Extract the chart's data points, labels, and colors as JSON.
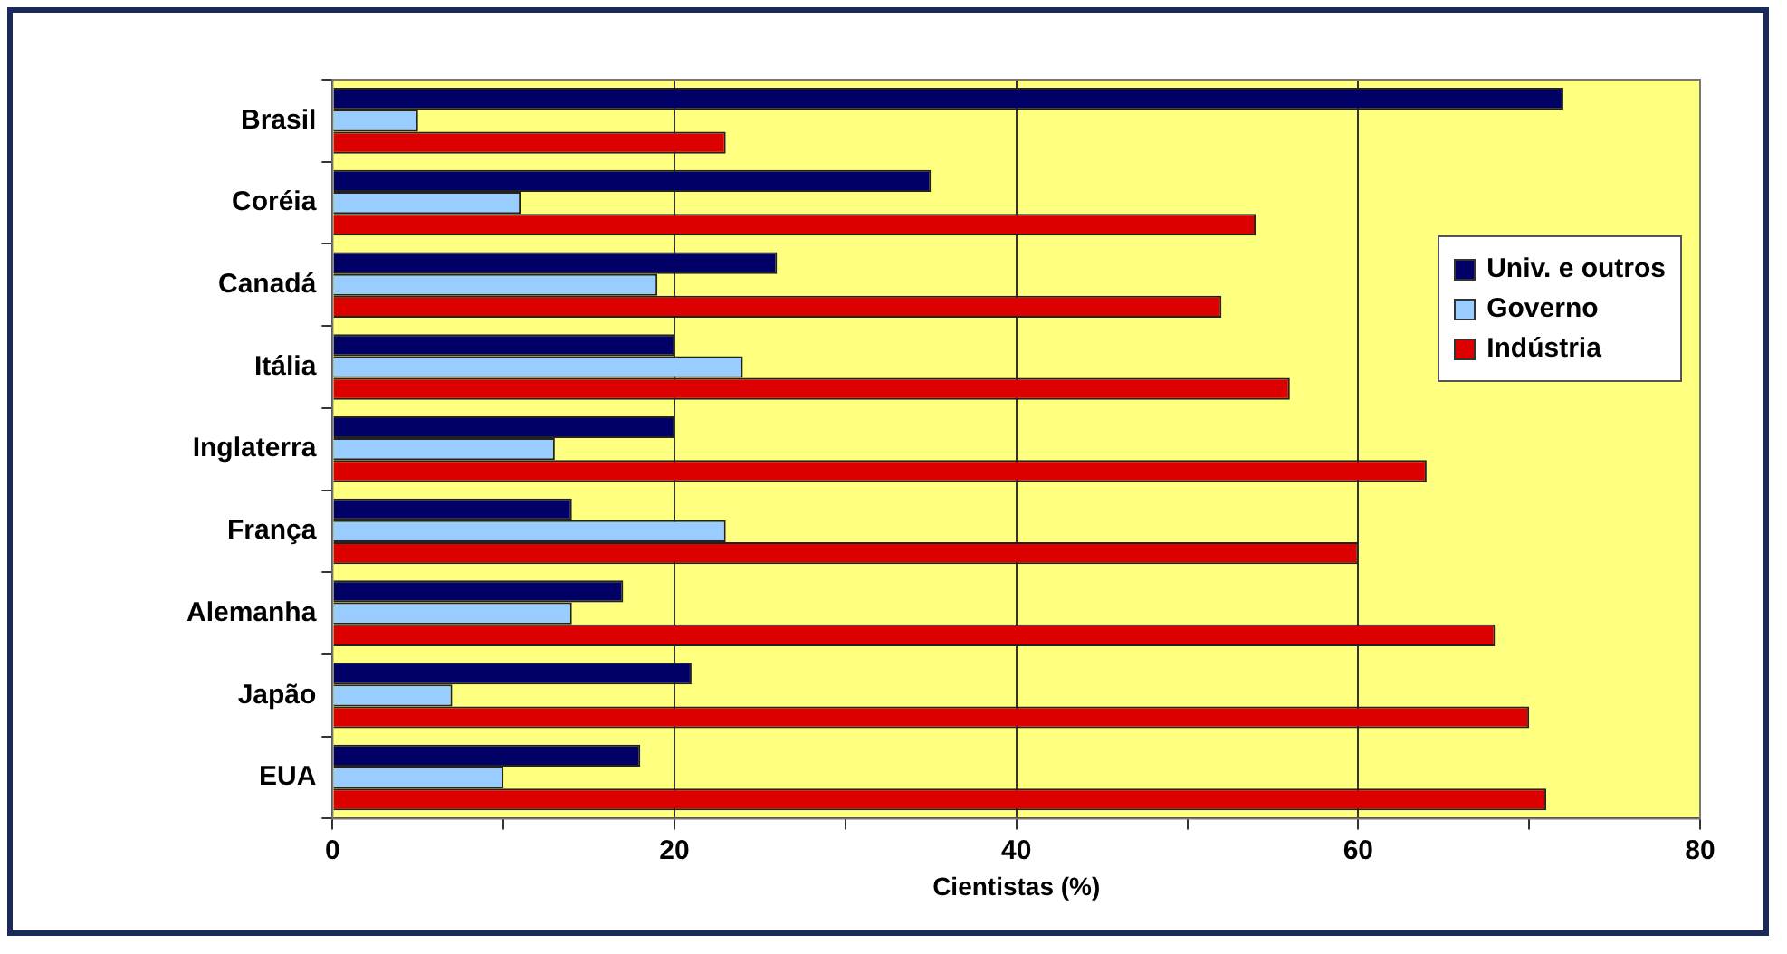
{
  "chart_data": {
    "type": "bar",
    "orientation": "horizontal",
    "xlabel": "Cientistas (%)",
    "categories": [
      "Brasil",
      "Coréia",
      "Canadá",
      "Itália",
      "Inglaterra",
      "França",
      "Alemanha",
      "Japão",
      "EUA"
    ],
    "series": [
      {
        "name": "Univ. e outros",
        "color": "#000066",
        "values": [
          72,
          35,
          26,
          20,
          20,
          14,
          17,
          21,
          18
        ]
      },
      {
        "name": "Governo",
        "color": "#99ccff",
        "values": [
          5,
          11,
          19,
          24,
          13,
          23,
          14,
          7,
          10
        ]
      },
      {
        "name": "Indústria",
        "color": "#dd0000",
        "values": [
          23,
          54,
          52,
          56,
          64,
          60,
          68,
          70,
          71
        ]
      }
    ],
    "xlim": [
      0,
      80
    ],
    "xticks": [
      0,
      {
        "value": 10,
        "label": null
      },
      20,
      {
        "value": 30,
        "label": null
      },
      40,
      {
        "value": 50,
        "label": null
      },
      60,
      {
        "value": 70,
        "label": null
      },
      80
    ],
    "grid": "x",
    "legend": "right"
  }
}
